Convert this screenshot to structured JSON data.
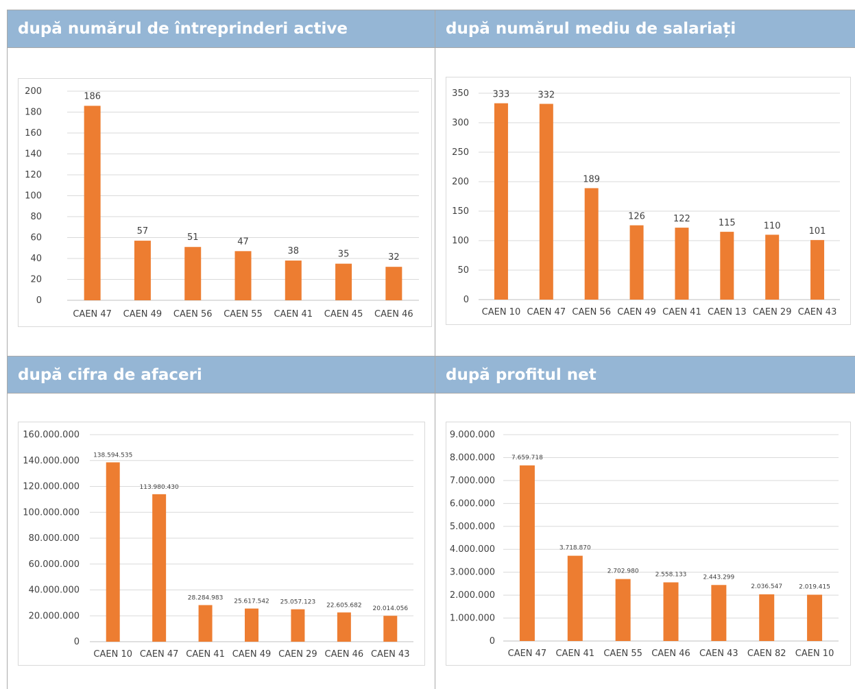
{
  "colors": {
    "bar": "#ed7d31",
    "header_bg": "#95b6d5",
    "header_text": "#ffffff",
    "grid": "#d9d9d9",
    "text": "#404040"
  },
  "panels": {
    "tl": {
      "title": "după numărul de întreprinderi active"
    },
    "tr": {
      "title": "după numărul mediu de salariați"
    },
    "bl": {
      "title": "după cifra de afaceri"
    },
    "br": {
      "title": "după profitul net"
    }
  },
  "chart_data": [
    {
      "id": "tl",
      "type": "bar",
      "categories": [
        "CAEN 47",
        "CAEN 49",
        "CAEN 56",
        "CAEN 55",
        "CAEN 41",
        "CAEN 45",
        "CAEN 46"
      ],
      "values": [
        186,
        57,
        51,
        47,
        38,
        35,
        32
      ],
      "value_labels": [
        "186",
        "57",
        "51",
        "47",
        "38",
        "35",
        "32"
      ],
      "ylim": [
        0,
        200
      ],
      "yticks": [
        0,
        20,
        40,
        60,
        80,
        100,
        120,
        140,
        160,
        180,
        200
      ],
      "ytick_labels": [
        "0",
        "20",
        "40",
        "60",
        "80",
        "100",
        "120",
        "140",
        "160",
        "180",
        "200"
      ],
      "grid": true
    },
    {
      "id": "tr",
      "type": "bar",
      "categories": [
        "CAEN 10",
        "CAEN 47",
        "CAEN 56",
        "CAEN 49",
        "CAEN 41",
        "CAEN 13",
        "CAEN 29",
        "CAEN 43"
      ],
      "values": [
        333,
        332,
        189,
        126,
        122,
        115,
        110,
        101
      ],
      "value_labels": [
        "333",
        "332",
        "189",
        "126",
        "122",
        "115",
        "110",
        "101"
      ],
      "ylim": [
        0,
        350
      ],
      "yticks": [
        0,
        50,
        100,
        150,
        200,
        250,
        300,
        350
      ],
      "ytick_labels": [
        "0",
        "50",
        "100",
        "150",
        "200",
        "250",
        "300",
        "350"
      ],
      "grid": true
    },
    {
      "id": "bl",
      "type": "bar",
      "categories": [
        "CAEN 10",
        "CAEN 47",
        "CAEN 41",
        "CAEN 49",
        "CAEN 29",
        "CAEN 46",
        "CAEN 43"
      ],
      "values": [
        138594535,
        113980430,
        28284983,
        25617542,
        25057123,
        22605682,
        20014056
      ],
      "value_labels": [
        "138.594.535",
        "113.980.430",
        "28.284.983",
        "25.617.542",
        "25.057.123",
        "22.605.682",
        "20.014.056"
      ],
      "ylim": [
        0,
        160000000
      ],
      "yticks": [
        0,
        20000000,
        40000000,
        60000000,
        80000000,
        100000000,
        120000000,
        140000000,
        160000000
      ],
      "ytick_labels": [
        "0",
        "20.000.000",
        "40.000.000",
        "60.000.000",
        "80.000.000",
        "100.000.000",
        "120.000.000",
        "140.000.000",
        "160.000.000"
      ],
      "grid": true
    },
    {
      "id": "br",
      "type": "bar",
      "categories": [
        "CAEN 47",
        "CAEN 41",
        "CAEN 55",
        "CAEN 46",
        "CAEN 43",
        "CAEN 82",
        "CAEN 10"
      ],
      "values": [
        7659718,
        3718870,
        2702980,
        2558133,
        2443299,
        2036547,
        2019415
      ],
      "value_labels": [
        "7.659.718",
        "3.718.870",
        "2.702.980",
        "2.558.133",
        "2.443.299",
        "2.036.547",
        "2.019.415"
      ],
      "ylim": [
        0,
        9000000
      ],
      "yticks": [
        0,
        1000000,
        2000000,
        3000000,
        4000000,
        5000000,
        6000000,
        7000000,
        8000000,
        9000000
      ],
      "ytick_labels": [
        "0",
        "1.000.000",
        "2.000.000",
        "3.000.000",
        "4.000.000",
        "5.000.000",
        "6.000.000",
        "7.000.000",
        "8.000.000",
        "9.000.000"
      ],
      "grid": true
    }
  ]
}
